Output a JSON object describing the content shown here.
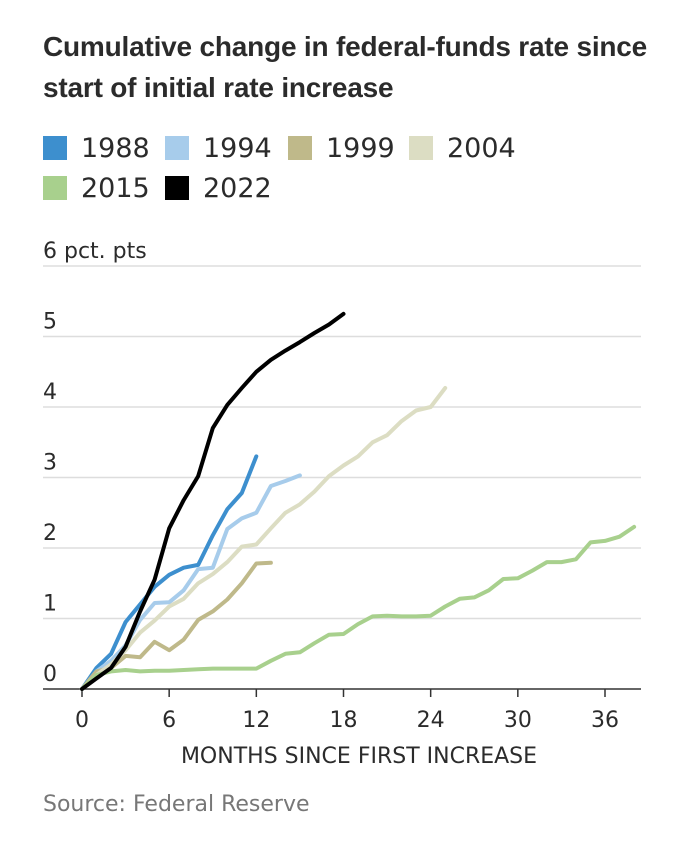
{
  "title": "Cumulative change in federal-funds rate since start of initial rate increase",
  "source": "Source: Federal Reserve",
  "chart_data": {
    "type": "line",
    "title": "Cumulative change in federal-funds rate since start of initial rate increase",
    "xlabel": "MONTHS SINCE FIRST INCREASE",
    "ylabel": "6 pct. pts",
    "xlim": [
      -2,
      38.5
    ],
    "ylim": [
      0,
      6
    ],
    "x_ticks": [
      0,
      6,
      12,
      18,
      24,
      30,
      36
    ],
    "x_tick_labels": [
      "0",
      "6",
      "12",
      "18",
      "24",
      "30",
      "36"
    ],
    "y_ticks": [
      0,
      1,
      2,
      3,
      4,
      5,
      6
    ],
    "y_tick_labels": [
      "0",
      "1",
      "2",
      "3",
      "4",
      "5",
      "6 pct. pts"
    ],
    "grid": true,
    "legend_position": "top",
    "series": [
      {
        "name": "1988",
        "color": "#3d8fce",
        "x": [
          0,
          1,
          2,
          3,
          4,
          5,
          6,
          7,
          8,
          9,
          10,
          11,
          12
        ],
        "y": [
          0,
          0.3,
          0.5,
          0.95,
          1.2,
          1.45,
          1.62,
          1.72,
          1.76,
          2.18,
          2.55,
          2.78,
          3.3
        ]
      },
      {
        "name": "1994",
        "color": "#a7cceb",
        "x": [
          0,
          1,
          2,
          3,
          4,
          5,
          6,
          7,
          8,
          9,
          10,
          11,
          12,
          13,
          14,
          15
        ],
        "y": [
          0,
          0.25,
          0.4,
          0.62,
          0.98,
          1.22,
          1.23,
          1.4,
          1.7,
          1.72,
          2.27,
          2.42,
          2.5,
          2.88,
          2.95,
          3.03
        ]
      },
      {
        "name": "1999",
        "color": "#bfb98a",
        "x": [
          0,
          1,
          2,
          3,
          4,
          5,
          6,
          7,
          8,
          9,
          10,
          11,
          12,
          13
        ],
        "y": [
          0,
          0.25,
          0.3,
          0.47,
          0.45,
          0.67,
          0.55,
          0.7,
          0.98,
          1.1,
          1.27,
          1.5,
          1.78,
          1.79
        ]
      },
      {
        "name": "2004",
        "color": "#dcddc3",
        "x": [
          0,
          1,
          2,
          3,
          4,
          5,
          6,
          7,
          8,
          9,
          10,
          11,
          12,
          13,
          14,
          15,
          16,
          17,
          18,
          19,
          20,
          21,
          22,
          23,
          24,
          25
        ],
        "y": [
          0,
          0.2,
          0.35,
          0.55,
          0.8,
          0.97,
          1.17,
          1.28,
          1.5,
          1.63,
          1.8,
          2.02,
          2.05,
          2.28,
          2.5,
          2.62,
          2.8,
          3.02,
          3.17,
          3.3,
          3.5,
          3.6,
          3.8,
          3.95,
          4.0,
          4.27
        ]
      },
      {
        "name": "2015",
        "color": "#a8d08d",
        "x": [
          0,
          1,
          2,
          3,
          4,
          5,
          6,
          7,
          8,
          9,
          10,
          11,
          12,
          13,
          14,
          15,
          16,
          17,
          18,
          19,
          20,
          21,
          22,
          23,
          24,
          25,
          26,
          27,
          28,
          29,
          30,
          31,
          32,
          33,
          34,
          35,
          36,
          37,
          38
        ],
        "y": [
          0,
          0.2,
          0.25,
          0.27,
          0.25,
          0.26,
          0.26,
          0.27,
          0.28,
          0.29,
          0.29,
          0.29,
          0.29,
          0.4,
          0.5,
          0.52,
          0.65,
          0.77,
          0.78,
          0.92,
          1.03,
          1.04,
          1.03,
          1.03,
          1.04,
          1.17,
          1.28,
          1.3,
          1.4,
          1.56,
          1.57,
          1.68,
          1.8,
          1.8,
          1.84,
          2.08,
          2.1,
          2.16,
          2.3
        ]
      },
      {
        "name": "2022",
        "color": "#000000",
        "x": [
          0,
          1,
          2,
          3,
          4,
          5,
          6,
          7,
          8,
          9,
          10,
          11,
          12,
          13,
          14,
          15,
          16,
          17,
          18
        ],
        "y": [
          0,
          0.15,
          0.3,
          0.6,
          1.1,
          1.55,
          2.28,
          2.68,
          3.02,
          3.7,
          4.03,
          4.27,
          4.5,
          4.67,
          4.8,
          4.92,
          5.05,
          5.17,
          5.32
        ]
      }
    ]
  }
}
